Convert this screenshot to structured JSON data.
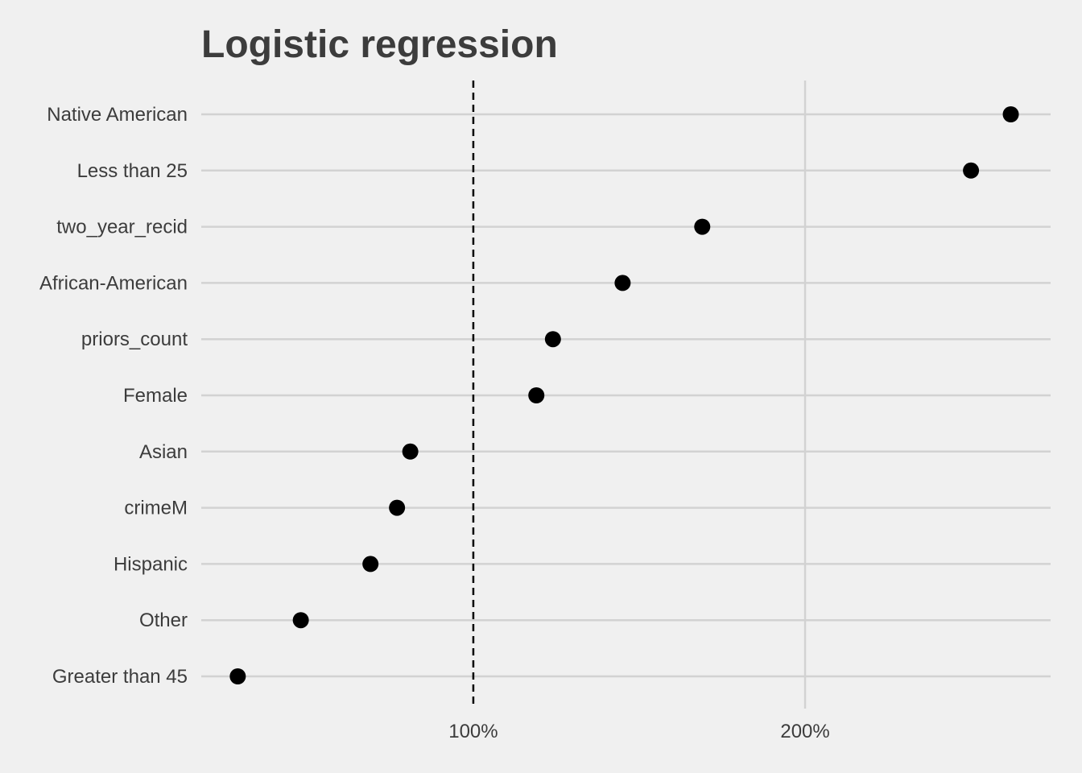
{
  "chart_data": {
    "type": "scatter",
    "title": "Logistic regression",
    "xlabel": "",
    "ylabel": "",
    "categories": [
      "Native American",
      "Less than 25",
      "two_year_recid",
      "African-American",
      "priors_count",
      "Female",
      "Asian",
      "crimeM",
      "Hispanic",
      "Other",
      "Greater than 45"
    ],
    "values": [
      2.62,
      2.5,
      1.69,
      1.45,
      1.24,
      1.19,
      0.81,
      0.77,
      0.69,
      0.48,
      0.29
    ],
    "xlim": [
      0.18,
      2.74
    ],
    "x_ticks": [
      1.0,
      2.0
    ],
    "x_tick_labels": [
      "100%",
      "200%"
    ],
    "reference_line": {
      "x": 1.0,
      "style": "dashed"
    },
    "grid": true,
    "legend": "none",
    "colors": {
      "background": "#f0f0f0",
      "grid": "#d2d2d2",
      "point": "#000000",
      "reference_line": "#000000",
      "text": "#3c3c3c"
    }
  }
}
